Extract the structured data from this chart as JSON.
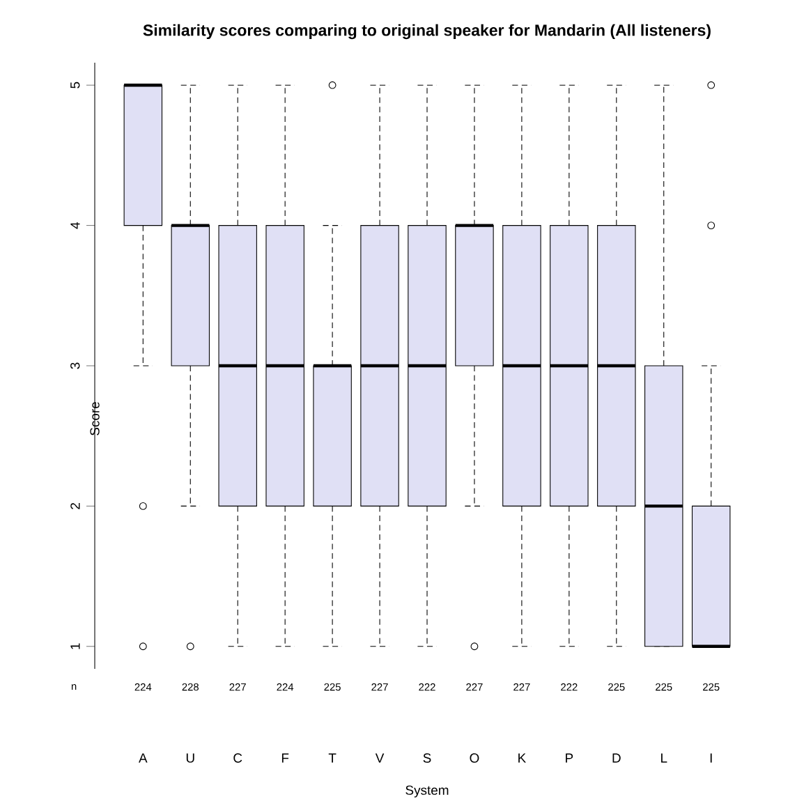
{
  "chart_data": {
    "type": "box",
    "title": "Similarity scores comparing to original speaker for Mandarin (All listeners)",
    "xlabel": "System",
    "ylabel": "Score",
    "categories": [
      "A",
      "U",
      "C",
      "F",
      "T",
      "V",
      "S",
      "O",
      "K",
      "P",
      "D",
      "L",
      "I"
    ],
    "color": "#e0e0f5",
    "ylim": [
      0.84,
      5.16
    ],
    "yticks": [
      1,
      2,
      3,
      4,
      5
    ],
    "boxes": [
      {
        "low": 3,
        "q1": 4,
        "median": 5,
        "q3": 5,
        "high": 5,
        "outliers": [
          2,
          1
        ]
      },
      {
        "low": 2,
        "q1": 3,
        "median": 4,
        "q3": 4,
        "high": 5,
        "outliers": [
          1
        ]
      },
      {
        "low": 1,
        "q1": 2,
        "median": 3,
        "q3": 4,
        "high": 5
      },
      {
        "low": 1,
        "q1": 2,
        "median": 3,
        "q3": 4,
        "high": 5
      },
      {
        "low": 1,
        "q1": 2,
        "median": 3,
        "q3": 3,
        "high": 4,
        "outliers": [
          5
        ]
      },
      {
        "low": 1,
        "q1": 2,
        "median": 3,
        "q3": 4,
        "high": 5
      },
      {
        "low": 1,
        "q1": 2,
        "median": 3,
        "q3": 4,
        "high": 5
      },
      {
        "low": 2,
        "q1": 3,
        "median": 4,
        "q3": 4,
        "high": 5,
        "outliers": [
          1
        ]
      },
      {
        "low": 1,
        "q1": 2,
        "median": 3,
        "q3": 4,
        "high": 5
      },
      {
        "low": 1,
        "q1": 2,
        "median": 3,
        "q3": 4,
        "high": 5
      },
      {
        "low": 1,
        "q1": 2,
        "median": 3,
        "q3": 4,
        "high": 5
      },
      {
        "low": 1,
        "q1": 1,
        "median": 2,
        "q3": 3,
        "high": 5
      },
      {
        "low": 1,
        "q1": 1,
        "median": 1,
        "q3": 2,
        "high": 3,
        "outliers": [
          4,
          5
        ]
      }
    ],
    "annotations": [
      "n",
      "224",
      "228",
      "227",
      "224",
      "225",
      "227",
      "222",
      "227",
      "227",
      "222",
      "225",
      "225",
      "225"
    ]
  }
}
